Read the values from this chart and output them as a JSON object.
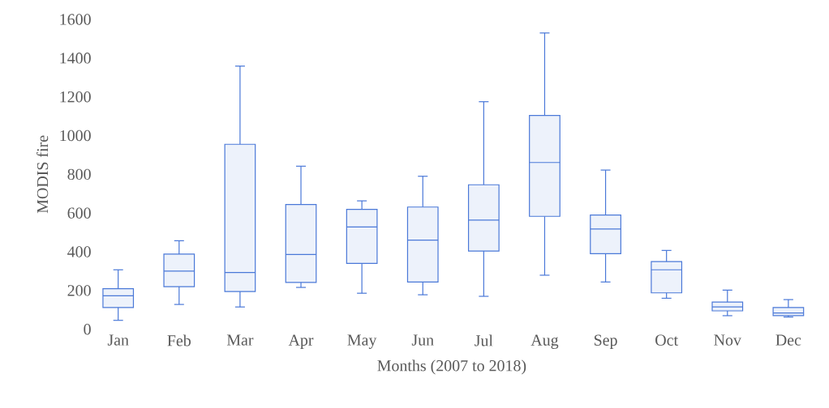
{
  "chart_data": {
    "type": "box",
    "xlabel": "Months (2007 to 2018)",
    "ylabel": "MODIS fire",
    "categories": [
      "Jan",
      "Feb",
      "Mar",
      "Apr",
      "May",
      "Jun",
      "Jul",
      "Aug",
      "Sep",
      "Oct",
      "Nov",
      "Dec"
    ],
    "color": "#4a78d8",
    "boxes": [
      {
        "low": 46,
        "q1": 112,
        "median": 173,
        "q3": 209,
        "high": 307
      },
      {
        "low": 128,
        "q1": 220,
        "median": 300,
        "q3": 388,
        "high": 457
      },
      {
        "low": 115,
        "q1": 195,
        "median": 293,
        "q3": 955,
        "high": 1359
      },
      {
        "low": 216,
        "q1": 242,
        "median": 386,
        "q3": 644,
        "high": 842
      },
      {
        "low": 186,
        "q1": 340,
        "median": 528,
        "q3": 619,
        "high": 663
      },
      {
        "low": 178,
        "q1": 244,
        "median": 460,
        "q3": 631,
        "high": 790
      },
      {
        "low": 170,
        "q1": 404,
        "median": 564,
        "q3": 746,
        "high": 1175
      },
      {
        "low": 279,
        "q1": 583,
        "median": 861,
        "q3": 1104,
        "high": 1530
      },
      {
        "low": 244,
        "q1": 390,
        "median": 518,
        "q3": 590,
        "high": 822
      },
      {
        "low": 160,
        "q1": 188,
        "median": 307,
        "q3": 349,
        "high": 407
      },
      {
        "low": 70,
        "q1": 95,
        "median": 115,
        "q3": 140,
        "high": 202
      },
      {
        "low": 63,
        "q1": 70,
        "median": 84,
        "q3": 112,
        "high": 153
      }
    ],
    "ylim": [
      0,
      1600
    ],
    "yticks": [
      0,
      200,
      400,
      600,
      800,
      1000,
      1200,
      1400,
      1600
    ]
  }
}
